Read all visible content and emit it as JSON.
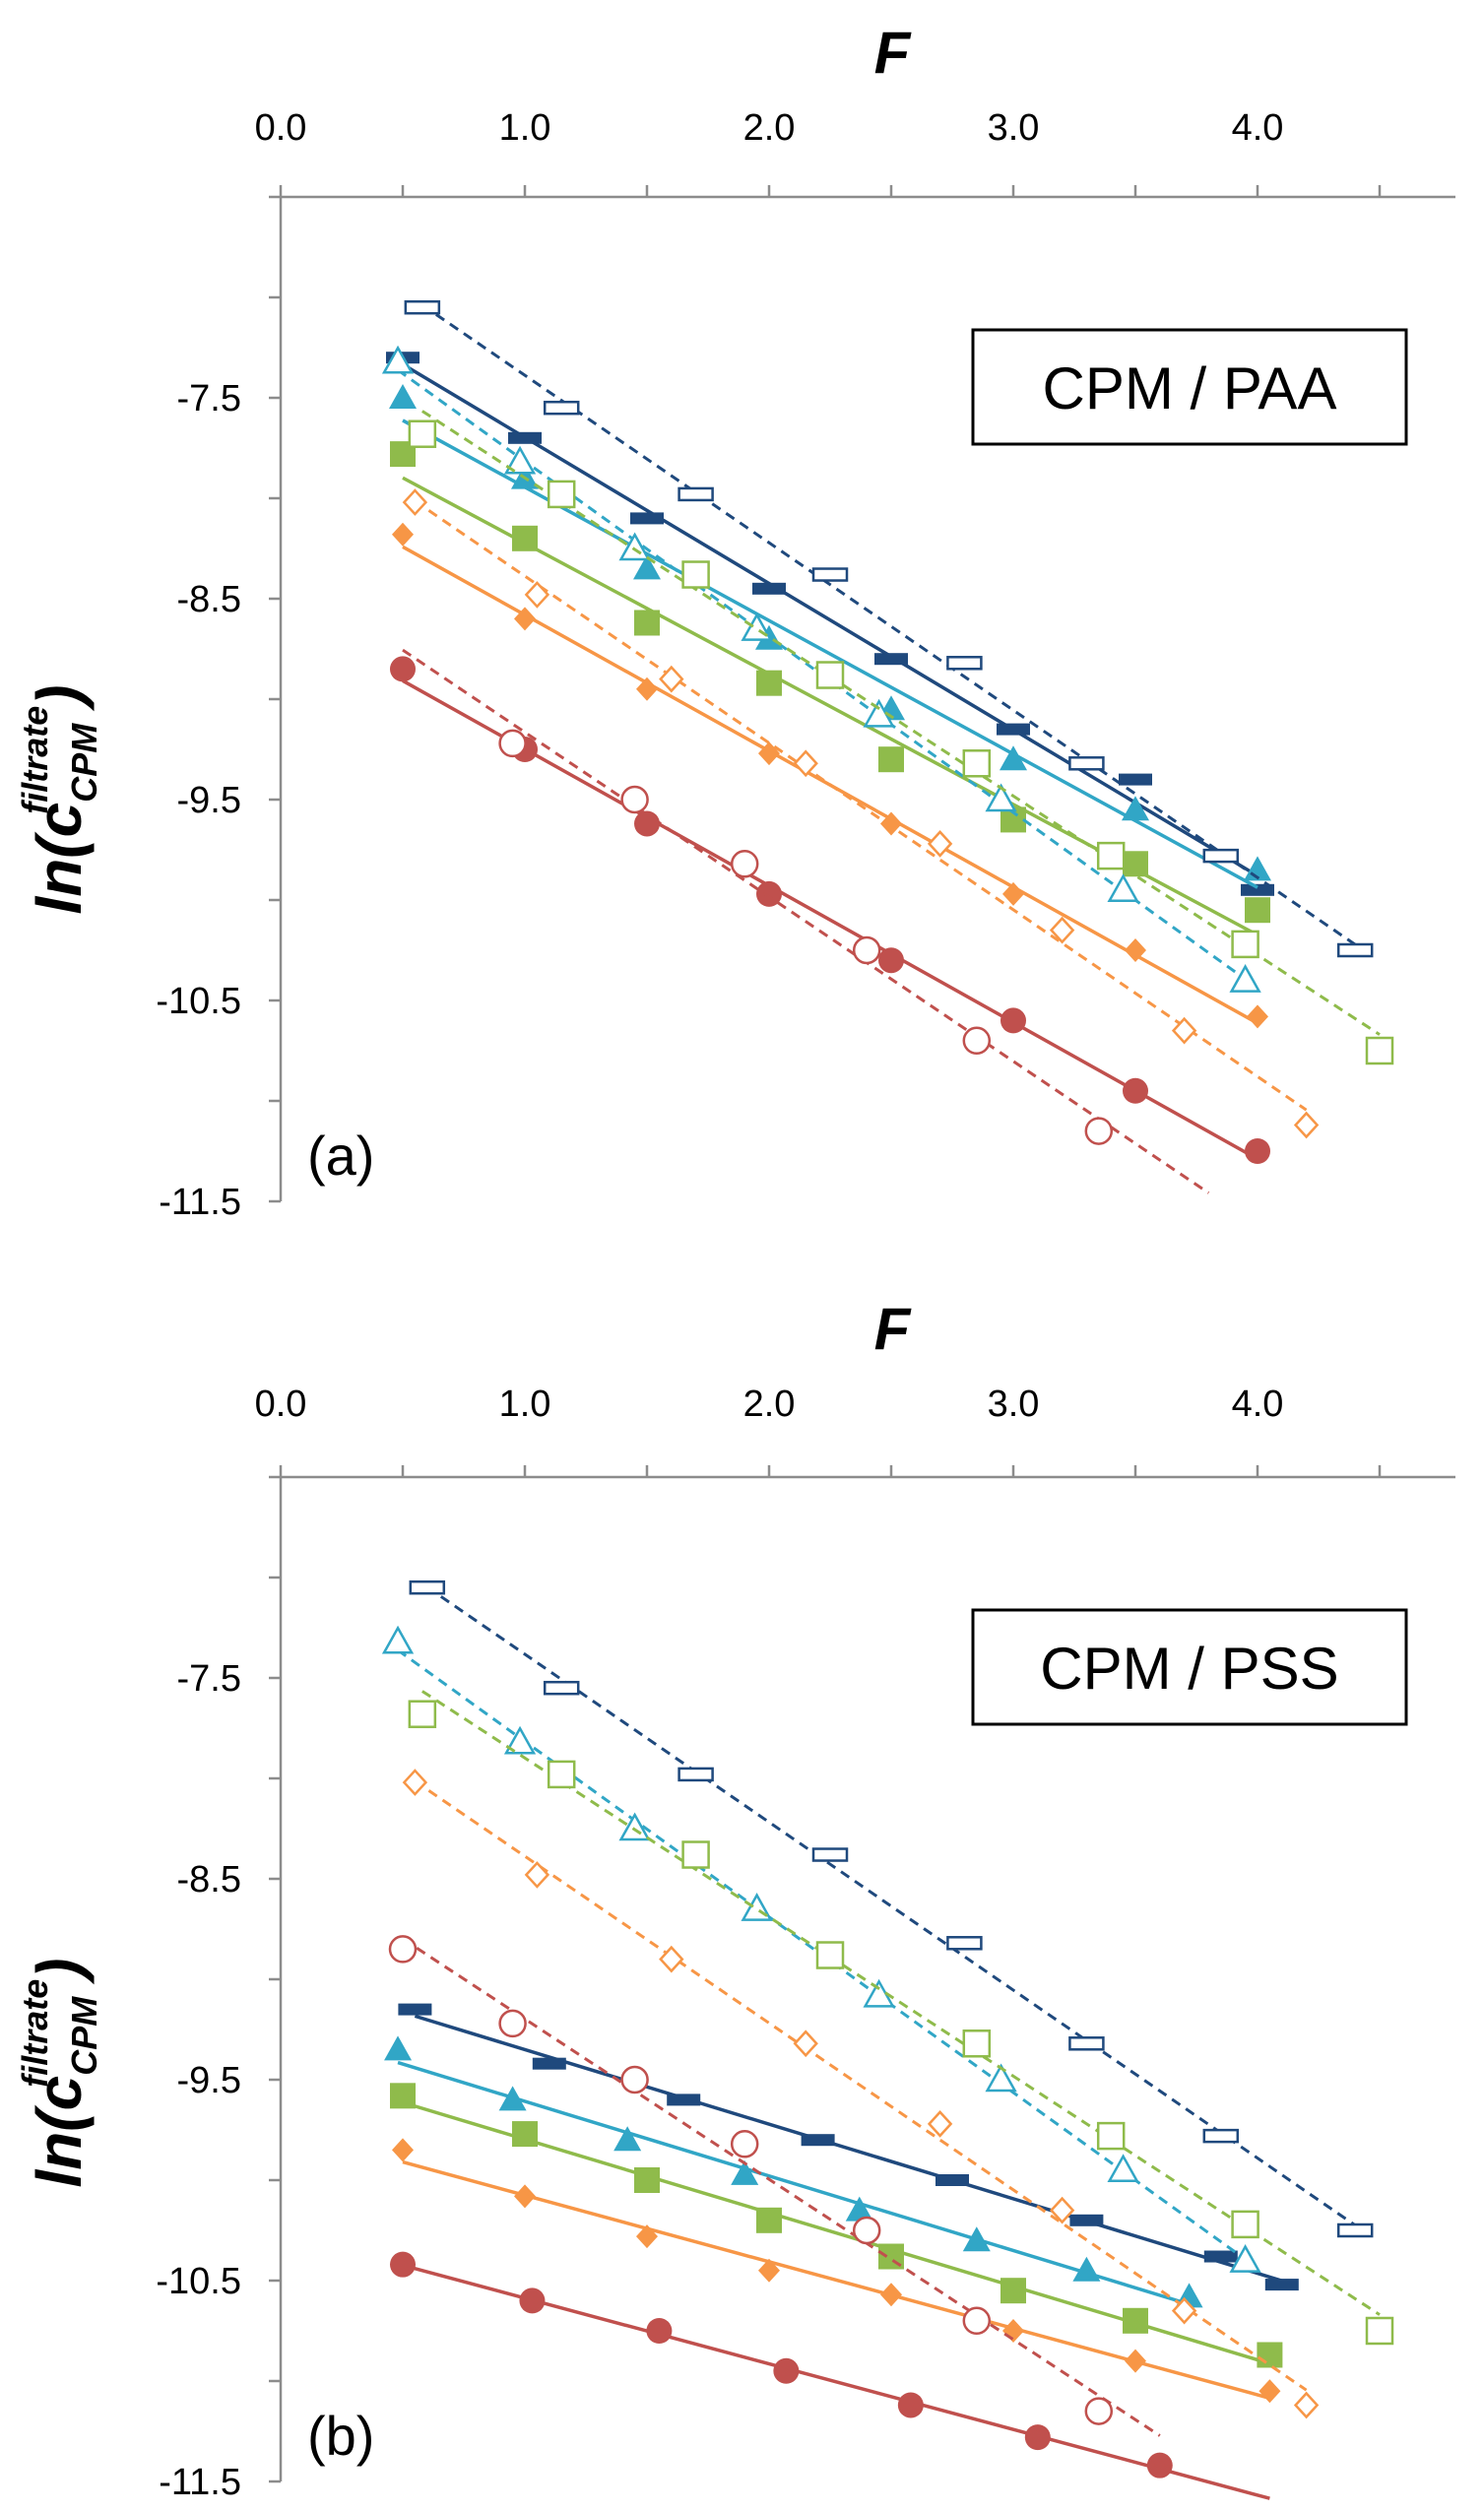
{
  "chart_data": [
    {
      "type": "scatter",
      "panel_label": "(a)",
      "box_label": "CPM / PAA",
      "xlabel": "F",
      "ylabel": {
        "prefix": "ln(c",
        "sub": "CPM",
        "sup": "filtrate",
        "suffix": ")"
      },
      "xlim": [
        0.0,
        4.5
      ],
      "ylim": [
        -11.5,
        -6.5
      ],
      "xticks": [
        "0.0",
        "1.0",
        "2.0",
        "3.0",
        "4.0"
      ],
      "yticks": [
        "-7.5",
        "-8.5",
        "-9.5",
        "-10.5",
        "-11.5"
      ],
      "series": [
        {
          "marker": "dash",
          "filled": true,
          "color": "#1f497d",
          "fit": "solid",
          "x": [
            0.5,
            1.0,
            1.5,
            2.0,
            2.5,
            3.0,
            3.5,
            4.0
          ],
          "y": [
            -7.3,
            -7.7,
            -8.1,
            -8.45,
            -8.8,
            -9.15,
            -9.4,
            -9.95
          ]
        },
        {
          "marker": "triangle",
          "filled": true,
          "color": "#31a6c6",
          "fit": "solid",
          "x": [
            0.5,
            1.0,
            1.5,
            2.0,
            2.5,
            3.0,
            3.5,
            4.0
          ],
          "y": [
            -7.5,
            -7.9,
            -8.35,
            -8.7,
            -9.05,
            -9.3,
            -9.55,
            -9.85
          ]
        },
        {
          "marker": "square",
          "filled": true,
          "color": "#8fbb4b",
          "fit": "solid",
          "x": [
            0.5,
            1.0,
            1.5,
            2.0,
            2.5,
            3.0,
            3.5,
            4.0
          ],
          "y": [
            -7.78,
            -8.2,
            -8.62,
            -8.92,
            -9.3,
            -9.6,
            -9.82,
            -10.05
          ]
        },
        {
          "marker": "diamond",
          "filled": true,
          "color": "#f79646",
          "fit": "solid",
          "x": [
            0.5,
            1.0,
            1.5,
            2.0,
            2.5,
            3.0,
            3.5,
            4.0
          ],
          "y": [
            -8.18,
            -8.6,
            -8.95,
            -9.27,
            -9.62,
            -9.97,
            -10.25,
            -10.58
          ]
        },
        {
          "marker": "circle",
          "filled": true,
          "color": "#c0504d",
          "fit": "solid",
          "x": [
            0.5,
            1.0,
            1.5,
            2.0,
            2.5,
            3.0,
            3.5,
            4.0
          ],
          "y": [
            -8.85,
            -9.25,
            -9.62,
            -9.97,
            -10.3,
            -10.6,
            -10.95,
            -11.25
          ]
        },
        {
          "marker": "dash",
          "filled": false,
          "color": "#1f497d",
          "fit": "dashed",
          "x": [
            0.58,
            1.15,
            1.7,
            2.25,
            2.8,
            3.3,
            3.85,
            4.4
          ],
          "y": [
            -7.05,
            -7.55,
            -7.98,
            -8.38,
            -8.82,
            -9.32,
            -9.78,
            -10.25
          ]
        },
        {
          "marker": "triangle",
          "filled": false,
          "color": "#31a6c6",
          "fit": "dashed",
          "x": [
            0.48,
            0.98,
            1.45,
            1.95,
            2.45,
            2.95,
            3.45,
            3.95
          ],
          "y": [
            -7.32,
            -7.82,
            -8.25,
            -8.65,
            -9.08,
            -9.5,
            -9.95,
            -10.4
          ]
        },
        {
          "marker": "square",
          "filled": false,
          "color": "#8fbb4b",
          "fit": "dashed",
          "x": [
            0.58,
            1.15,
            1.7,
            2.25,
            2.85,
            3.4,
            3.95,
            4.5
          ],
          "y": [
            -7.68,
            -7.98,
            -8.38,
            -8.88,
            -9.32,
            -9.78,
            -10.22,
            -10.75
          ]
        },
        {
          "marker": "diamond",
          "filled": false,
          "color": "#f79646",
          "fit": "dashed",
          "x": [
            0.55,
            1.05,
            1.6,
            2.15,
            2.7,
            3.2,
            3.7,
            4.2
          ],
          "y": [
            -8.02,
            -8.48,
            -8.9,
            -9.32,
            -9.72,
            -10.15,
            -10.65,
            -11.12
          ]
        },
        {
          "marker": "circle",
          "filled": false,
          "color": "#c0504d",
          "fit": "dashed",
          "x": [
            0.95,
            1.45,
            1.9,
            2.4,
            2.85,
            3.35
          ],
          "y": [
            -9.22,
            -9.5,
            -9.82,
            -10.25,
            -10.7,
            -11.15
          ],
          "fit_x": [
            0.5,
            3.8
          ]
        }
      ]
    },
    {
      "type": "scatter",
      "panel_label": "(b)",
      "box_label": "CPM / PSS",
      "xlabel": "F",
      "ylabel": {
        "prefix": "ln(c",
        "sub": "CPM",
        "sup": "filtrate",
        "suffix": ")"
      },
      "xlim": [
        0.0,
        4.5
      ],
      "ylim": [
        -11.5,
        -6.5
      ],
      "xticks": [
        "0.0",
        "1.0",
        "2.0",
        "3.0",
        "4.0"
      ],
      "yticks": [
        "-7.5",
        "-8.5",
        "-9.5",
        "-10.5",
        "-11.5"
      ],
      "series": [
        {
          "marker": "dash",
          "filled": true,
          "color": "#1f497d",
          "fit": "solid",
          "x": [
            0.55,
            1.1,
            1.65,
            2.2,
            2.75,
            3.3,
            3.85,
            4.1
          ],
          "y": [
            -9.15,
            -9.42,
            -9.6,
            -9.8,
            -10.0,
            -10.2,
            -10.38,
            -10.52
          ]
        },
        {
          "marker": "triangle",
          "filled": true,
          "color": "#31a6c6",
          "fit": "solid",
          "x": [
            0.48,
            0.95,
            1.42,
            1.9,
            2.37,
            2.85,
            3.3,
            3.72
          ],
          "y": [
            -9.35,
            -9.6,
            -9.8,
            -9.97,
            -10.15,
            -10.3,
            -10.45,
            -10.58
          ]
        },
        {
          "marker": "square",
          "filled": true,
          "color": "#8fbb4b",
          "fit": "solid",
          "x": [
            0.5,
            1.0,
            1.5,
            2.0,
            2.5,
            3.0,
            3.5,
            4.05
          ],
          "y": [
            -9.58,
            -9.77,
            -10.0,
            -10.2,
            -10.38,
            -10.55,
            -10.7,
            -10.87
          ]
        },
        {
          "marker": "diamond",
          "filled": true,
          "color": "#f79646",
          "fit": "solid",
          "x": [
            0.5,
            1.0,
            1.5,
            2.0,
            2.5,
            3.0,
            3.5,
            4.05
          ],
          "y": [
            -9.85,
            -10.08,
            -10.28,
            -10.45,
            -10.57,
            -10.75,
            -10.9,
            -11.05
          ]
        },
        {
          "marker": "circle",
          "filled": true,
          "color": "#c0504d",
          "fit": "solid",
          "x": [
            0.5,
            1.03,
            1.55,
            2.07,
            2.58,
            3.1,
            3.6
          ],
          "y": [
            -10.42,
            -10.6,
            -10.75,
            -10.95,
            -11.12,
            -11.28,
            -11.42
          ],
          "fit_x": [
            0.5,
            4.05
          ]
        },
        {
          "marker": "dash",
          "filled": false,
          "color": "#1f497d",
          "fit": "dashed",
          "x": [
            0.6,
            1.15,
            1.7,
            2.25,
            2.8,
            3.3,
            3.85,
            4.4
          ],
          "y": [
            -7.05,
            -7.55,
            -7.98,
            -8.38,
            -8.82,
            -9.32,
            -9.78,
            -10.25
          ]
        },
        {
          "marker": "triangle",
          "filled": false,
          "color": "#31a6c6",
          "fit": "dashed",
          "x": [
            0.48,
            0.98,
            1.45,
            1.95,
            2.45,
            2.95,
            3.45,
            3.95
          ],
          "y": [
            -7.32,
            -7.82,
            -8.25,
            -8.65,
            -9.08,
            -9.5,
            -9.95,
            -10.4
          ]
        },
        {
          "marker": "square",
          "filled": false,
          "color": "#8fbb4b",
          "fit": "dashed",
          "x": [
            0.58,
            1.15,
            1.7,
            2.25,
            2.85,
            3.4,
            3.95,
            4.5
          ],
          "y": [
            -7.68,
            -7.98,
            -8.38,
            -8.88,
            -9.32,
            -9.78,
            -10.22,
            -10.75
          ]
        },
        {
          "marker": "diamond",
          "filled": false,
          "color": "#f79646",
          "fit": "dashed",
          "x": [
            0.55,
            1.05,
            1.6,
            2.15,
            2.7,
            3.2,
            3.7,
            4.2
          ],
          "y": [
            -8.02,
            -8.48,
            -8.9,
            -9.32,
            -9.72,
            -10.15,
            -10.65,
            -11.12
          ]
        },
        {
          "marker": "circle",
          "filled": false,
          "color": "#c0504d",
          "fit": "dashed",
          "x": [
            0.5,
            0.95,
            1.45,
            1.9,
            2.4,
            2.85,
            3.35
          ],
          "y": [
            -8.85,
            -9.22,
            -9.5,
            -9.82,
            -10.25,
            -10.7,
            -11.15
          ],
          "fit_x": [
            0.5,
            3.6
          ]
        }
      ]
    }
  ]
}
